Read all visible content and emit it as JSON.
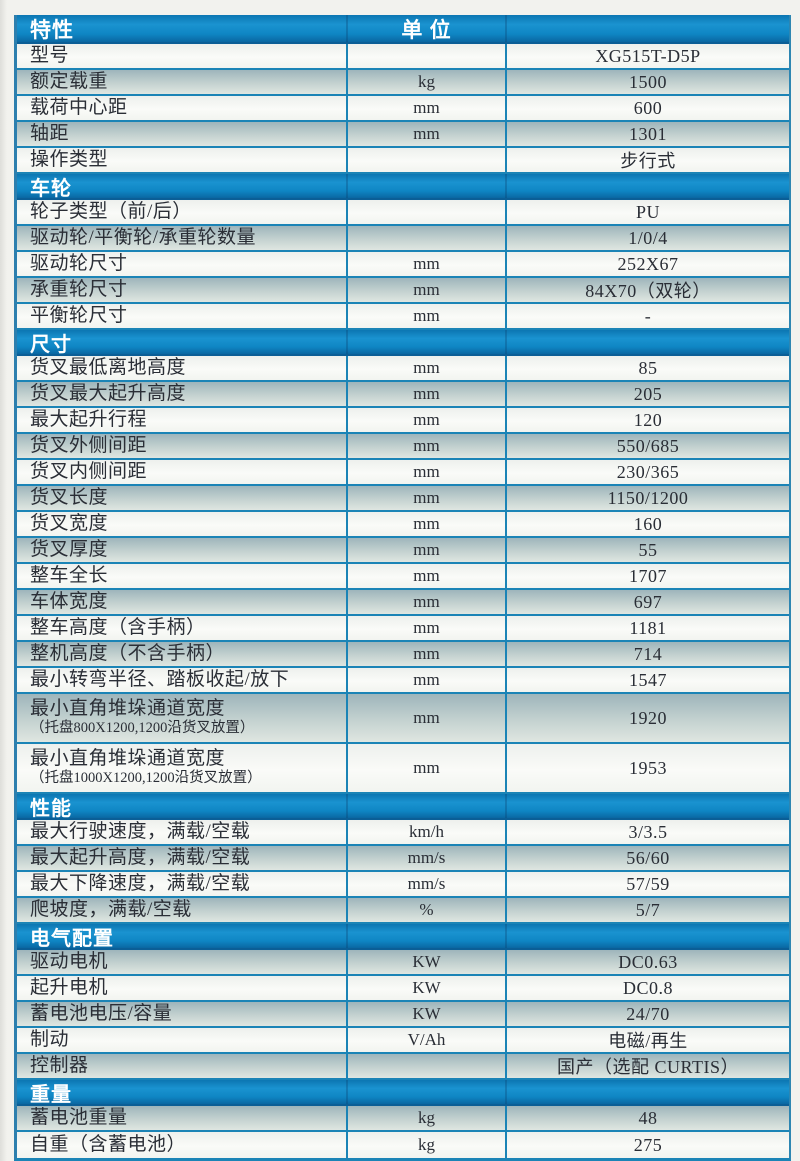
{
  "table": {
    "header": {
      "feature_label": "特性",
      "unit_label": "单 位",
      "value_label": ""
    },
    "colors": {
      "band_blue": "#1090ce",
      "band_blue_dark": "#0a67a2",
      "border_blue": "#1b84b6",
      "shaded_row_top": "#9eb5bb",
      "shaded_row_bottom": "#dfe6e1",
      "text": "#2a2e36"
    },
    "sections": [
      {
        "title": "",
        "rows": [
          {
            "label": "型号",
            "unit": "",
            "value": "XG515T-D5P",
            "shaded": false
          },
          {
            "label": "额定载重",
            "unit": "kg",
            "value": "1500",
            "shaded": true
          },
          {
            "label": "载荷中心距",
            "unit": "mm",
            "value": "600",
            "shaded": false
          },
          {
            "label": "轴距",
            "unit": "mm",
            "value": "1301",
            "shaded": true
          },
          {
            "label": "操作类型",
            "unit": "",
            "value": "步行式",
            "shaded": false
          }
        ]
      },
      {
        "title": "车轮",
        "rows": [
          {
            "label": "轮子类型（前/后）",
            "unit": "",
            "value": "PU",
            "shaded": false
          },
          {
            "label": "驱动轮/平衡轮/承重轮数量",
            "unit": "",
            "value": "1/0/4",
            "shaded": true
          },
          {
            "label": "驱动轮尺寸",
            "unit": "mm",
            "value": "252X67",
            "shaded": false
          },
          {
            "label": "承重轮尺寸",
            "unit": "mm",
            "value": "84X70（双轮）",
            "shaded": true
          },
          {
            "label": "平衡轮尺寸",
            "unit": "mm",
            "value": "-",
            "shaded": false
          }
        ]
      },
      {
        "title": "尺寸",
        "rows": [
          {
            "label": "货叉最低离地高度",
            "unit": "mm",
            "value": "85",
            "shaded": false
          },
          {
            "label": "货叉最大起升高度",
            "unit": "mm",
            "value": "205",
            "shaded": true
          },
          {
            "label": "最大起升行程",
            "unit": "mm",
            "value": "120",
            "shaded": false
          },
          {
            "label": "货叉外侧间距",
            "unit": "mm",
            "value": "550/685",
            "shaded": true
          },
          {
            "label": "货叉内侧间距",
            "unit": "mm",
            "value": "230/365",
            "shaded": false
          },
          {
            "label": "货叉长度",
            "unit": "mm",
            "value": "1150/1200",
            "shaded": true
          },
          {
            "label": "货叉宽度",
            "unit": "mm",
            "value": "160",
            "shaded": false
          },
          {
            "label": "货叉厚度",
            "unit": "mm",
            "value": "55",
            "shaded": true
          },
          {
            "label": "整车全长",
            "unit": "mm",
            "value": "1707",
            "shaded": false
          },
          {
            "label": "车体宽度",
            "unit": "mm",
            "value": "697",
            "shaded": true
          },
          {
            "label": "整车高度（含手柄）",
            "unit": "mm",
            "value": "1181",
            "shaded": false
          },
          {
            "label": "整机高度（不含手柄）",
            "unit": "mm",
            "value": "714",
            "shaded": true
          },
          {
            "label": "最小转弯半径、踏板收起/放下",
            "unit": "mm",
            "value": "1547",
            "shaded": false
          },
          {
            "label": "最小直角堆垛通道宽度",
            "sub": "（托盘800X1200,1200沿货叉放置）",
            "unit": "mm",
            "value": "1920",
            "shaded": true
          },
          {
            "label": "最小直角堆垛通道宽度",
            "sub": "（托盘1000X1200,1200沿货叉放置）",
            "unit": "mm",
            "value": "1953",
            "shaded": false
          }
        ]
      },
      {
        "title": "性能",
        "rows": [
          {
            "label": "最大行驶速度，满载/空载",
            "unit": "km/h",
            "value": "3/3.5",
            "shaded": false
          },
          {
            "label": "最大起升高度，满载/空载",
            "unit": "mm/s",
            "value": "56/60",
            "shaded": true
          },
          {
            "label": "最大下降速度，满载/空载",
            "unit": "mm/s",
            "value": "57/59",
            "shaded": false
          },
          {
            "label": "爬坡度，满载/空载",
            "unit": "%",
            "value": "5/7",
            "shaded": true
          }
        ]
      },
      {
        "title": "电气配置",
        "rows": [
          {
            "label": "驱动电机",
            "unit": "KW",
            "value": "DC0.63",
            "shaded": true
          },
          {
            "label": "起升电机",
            "unit": "KW",
            "value": "DC0.8",
            "shaded": false
          },
          {
            "label": "蓄电池电压/容量",
            "unit": "KW",
            "value": "24/70",
            "shaded": true
          },
          {
            "label": "制动",
            "unit": "V/Ah",
            "value": "电磁/再生",
            "shaded": false
          },
          {
            "label": "控制器",
            "unit": "",
            "value": "国产（选配 CURTIS）",
            "shaded": true
          }
        ]
      },
      {
        "title": "重量",
        "rows": [
          {
            "label": "蓄电池重量",
            "unit": "kg",
            "value": "48",
            "shaded": true
          },
          {
            "label": "自重（含蓄电池）",
            "unit": "kg",
            "value": "275",
            "shaded": false
          }
        ]
      }
    ]
  }
}
